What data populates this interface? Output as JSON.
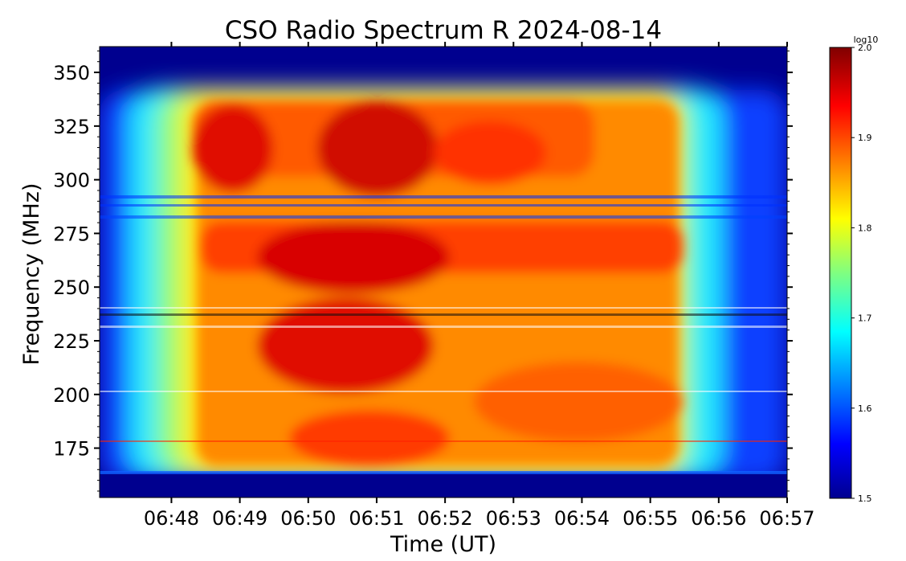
{
  "chart_data": {
    "type": "heatmap",
    "title": "CSO Radio Spectrum R 2024-08-14",
    "xlabel": "Time (UT)",
    "ylabel": "Frequency (MHz)",
    "x_ticks": [
      "06:48",
      "06:49",
      "06:50",
      "06:51",
      "06:52",
      "06:53",
      "06:54",
      "06:55",
      "06:56",
      "06:57"
    ],
    "x_range_minutes": [
      46.95,
      57.0
    ],
    "y_ticks": [
      175,
      200,
      225,
      250,
      275,
      300,
      325,
      350
    ],
    "ylim": [
      152,
      362
    ],
    "colorbar": {
      "label": "log10",
      "min": 1.5,
      "max": 2.0,
      "ticks": [
        "1.5",
        "1.6",
        "1.7",
        "1.8",
        "1.9",
        "2.0"
      ],
      "colormap": "jet"
    },
    "data_notes": {
      "background_value": 1.5,
      "burst_time_range": [
        "06:48:20",
        "06:55:40"
      ],
      "burst_freq_range_mhz": [
        160,
        345
      ],
      "peak_value": 2.0,
      "bright_regions": [
        {
          "t": "06:49",
          "f": 305,
          "value": 1.95
        },
        {
          "t": "06:51",
          "f": 305,
          "value": 1.97
        },
        {
          "t": "06:52:30",
          "f": 305,
          "value": 1.92
        },
        {
          "t": "06:51",
          "f": 262,
          "value": 1.95
        },
        {
          "t": "06:53:30",
          "f": 270,
          "value": 1.9
        },
        {
          "t": "06:50:30",
          "f": 220,
          "value": 1.94
        },
        {
          "t": "06:51",
          "f": 190,
          "value": 1.93
        },
        {
          "t": "06:54:30",
          "f": 185,
          "value": 1.9
        }
      ]
    }
  }
}
